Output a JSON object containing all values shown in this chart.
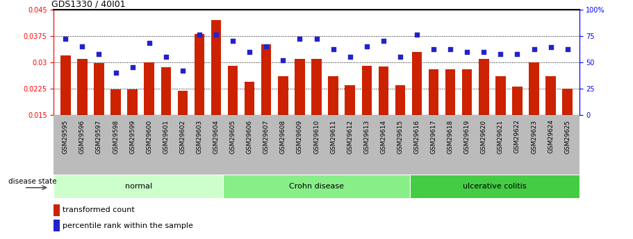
{
  "title": "GDS1330 / 40I01",
  "categories": [
    "GSM29595",
    "GSM29596",
    "GSM29597",
    "GSM29598",
    "GSM29599",
    "GSM29600",
    "GSM29601",
    "GSM29602",
    "GSM29603",
    "GSM29604",
    "GSM29605",
    "GSM29606",
    "GSM29607",
    "GSM29608",
    "GSM29609",
    "GSM29610",
    "GSM29611",
    "GSM29612",
    "GSM29613",
    "GSM29614",
    "GSM29615",
    "GSM29616",
    "GSM29617",
    "GSM29618",
    "GSM29619",
    "GSM29620",
    "GSM29621",
    "GSM29622",
    "GSM29623",
    "GSM29624",
    "GSM29625"
  ],
  "bar_values": [
    0.032,
    0.031,
    0.0297,
    0.0223,
    0.0222,
    0.03,
    0.0285,
    0.0218,
    0.038,
    0.042,
    0.029,
    0.0245,
    0.035,
    0.026,
    0.031,
    0.031,
    0.026,
    0.0235,
    0.029,
    0.0288,
    0.0235,
    0.033,
    0.028,
    0.028,
    0.028,
    0.031,
    0.026,
    0.023,
    0.03,
    0.026,
    0.0225
  ],
  "dot_values": [
    72,
    65,
    58,
    40,
    45,
    68,
    55,
    42,
    76,
    76,
    70,
    60,
    65,
    52,
    72,
    72,
    62,
    55,
    65,
    70,
    55,
    76,
    62,
    62,
    60,
    60,
    58,
    58,
    62,
    64,
    62
  ],
  "groups": [
    {
      "label": "normal",
      "start": 0,
      "end": 9,
      "color": "#ccffcc"
    },
    {
      "label": "Crohn disease",
      "start": 10,
      "end": 20,
      "color": "#88ee88"
    },
    {
      "label": "ulcerative colitis",
      "start": 21,
      "end": 30,
      "color": "#44cc44"
    }
  ],
  "ylim_left": [
    0.015,
    0.045
  ],
  "ylim_right": [
    0,
    100
  ],
  "yticks_left": [
    0.015,
    0.0225,
    0.03,
    0.0375,
    0.045
  ],
  "ytick_labels_left": [
    "0.015",
    "0.0225",
    "0.03",
    "0.0375",
    "0.045"
  ],
  "yticks_right": [
    0,
    25,
    50,
    75,
    100
  ],
  "ytick_labels_right": [
    "0",
    "25",
    "50",
    "75",
    "100%"
  ],
  "bar_color": "#cc2200",
  "dot_color": "#2222cc",
  "disease_state_label": "disease state",
  "legend_bar_label": "transformed count",
  "legend_dot_label": "percentile rank within the sample",
  "xtick_bg_color": "#bbbbbb"
}
